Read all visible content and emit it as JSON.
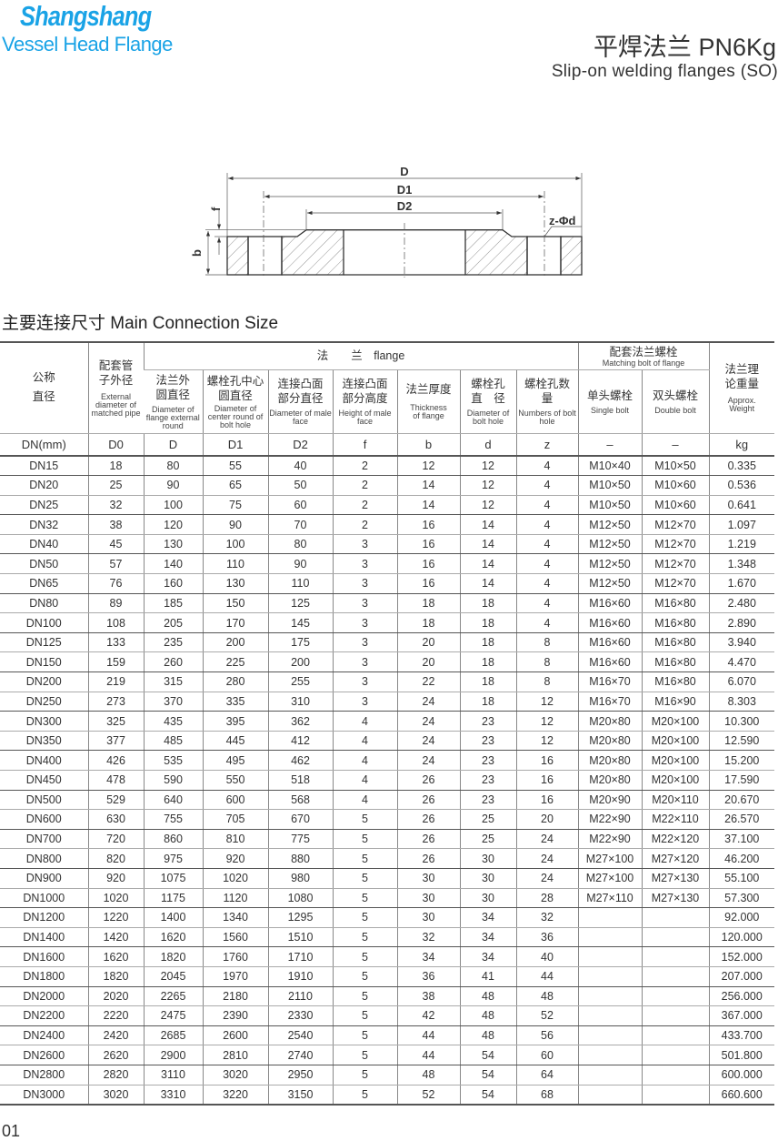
{
  "brand": {
    "name": "Shangshang",
    "tagline": "Vessel Head Flange",
    "color": "#1aa3e6"
  },
  "title": {
    "cn": "平焊法兰 PN6Kg",
    "en": "Slip-on welding flanges (SO)"
  },
  "drawing": {
    "labels": {
      "D": "D",
      "D1": "D1",
      "D2": "D2",
      "f": "f",
      "b": "b",
      "holes": "z-Φd"
    }
  },
  "section_title": "主要连接尺寸  Main Connection Size",
  "table": {
    "header": {
      "dn": "公称\n直径",
      "d0_cn": "配套管子外径",
      "d0_en": "External diameter of matched pipe",
      "flange_group": "法　　兰　flange",
      "bolt_group_cn": "配套法兰螺栓",
      "bolt_group_en": "Matching bolt of flange",
      "weight_cn": "法兰理论重量",
      "weight_en": "Approx. Weight",
      "D_cn": "法兰外圆直径",
      "D_en": "Diameter of flange external round",
      "D1_cn": "螺栓孔中心圆直径",
      "D1_en": "Diameter of center round of bolt hole",
      "D2_cn": "连接凸面部分直径",
      "D2_en": "Diameter of male face",
      "f_cn": "连接凸面部分高度",
      "f_en": "Height of male face",
      "b_cn": "法兰厚度",
      "b_en": "Thickness of flange",
      "d_cn": "螺栓孔直　径",
      "d_en": "Diameter of bolt hole",
      "z_cn": "螺栓孔数　量",
      "z_en": "Numbers of bolt hole",
      "single_cn": "单头螺栓",
      "single_en": "Single bolt",
      "double_cn": "双头螺栓",
      "double_en": "Double bolt"
    },
    "units": [
      "DN(mm)",
      "D0",
      "D",
      "D1",
      "D2",
      "f",
      "b",
      "d",
      "z",
      "–",
      "–",
      "kg"
    ],
    "rows": [
      [
        "DN15",
        "18",
        "80",
        "55",
        "40",
        "2",
        "12",
        "12",
        "4",
        "M10×40",
        "M10×50",
        "0.335"
      ],
      [
        "DN20",
        "25",
        "90",
        "65",
        "50",
        "2",
        "14",
        "12",
        "4",
        "M10×50",
        "M10×60",
        "0.536"
      ],
      [
        "DN25",
        "32",
        "100",
        "75",
        "60",
        "2",
        "14",
        "12",
        "4",
        "M10×50",
        "M10×60",
        "0.641"
      ],
      [
        "DN32",
        "38",
        "120",
        "90",
        "70",
        "2",
        "16",
        "14",
        "4",
        "M12×50",
        "M12×70",
        "1.097"
      ],
      [
        "DN40",
        "45",
        "130",
        "100",
        "80",
        "3",
        "16",
        "14",
        "4",
        "M12×50",
        "M12×70",
        "1.219"
      ],
      [
        "DN50",
        "57",
        "140",
        "110",
        "90",
        "3",
        "16",
        "14",
        "4",
        "M12×50",
        "M12×70",
        "1.348"
      ],
      [
        "DN65",
        "76",
        "160",
        "130",
        "110",
        "3",
        "16",
        "14",
        "4",
        "M12×50",
        "M12×70",
        "1.670"
      ],
      [
        "DN80",
        "89",
        "185",
        "150",
        "125",
        "3",
        "18",
        "18",
        "4",
        "M16×60",
        "M16×80",
        "2.480"
      ],
      [
        "DN100",
        "108",
        "205",
        "170",
        "145",
        "3",
        "18",
        "18",
        "4",
        "M16×60",
        "M16×80",
        "2.890"
      ],
      [
        "DN125",
        "133",
        "235",
        "200",
        "175",
        "3",
        "20",
        "18",
        "8",
        "M16×60",
        "M16×80",
        "3.940"
      ],
      [
        "DN150",
        "159",
        "260",
        "225",
        "200",
        "3",
        "20",
        "18",
        "8",
        "M16×60",
        "M16×80",
        "4.470"
      ],
      [
        "DN200",
        "219",
        "315",
        "280",
        "255",
        "3",
        "22",
        "18",
        "8",
        "M16×70",
        "M16×80",
        "6.070"
      ],
      [
        "DN250",
        "273",
        "370",
        "335",
        "310",
        "3",
        "24",
        "18",
        "12",
        "M16×70",
        "M16×90",
        "8.303"
      ],
      [
        "DN300",
        "325",
        "435",
        "395",
        "362",
        "4",
        "24",
        "23",
        "12",
        "M20×80",
        "M20×100",
        "10.300"
      ],
      [
        "DN350",
        "377",
        "485",
        "445",
        "412",
        "4",
        "24",
        "23",
        "12",
        "M20×80",
        "M20×100",
        "12.590"
      ],
      [
        "DN400",
        "426",
        "535",
        "495",
        "462",
        "4",
        "24",
        "23",
        "16",
        "M20×80",
        "M20×100",
        "15.200"
      ],
      [
        "DN450",
        "478",
        "590",
        "550",
        "518",
        "4",
        "26",
        "23",
        "16",
        "M20×80",
        "M20×100",
        "17.590"
      ],
      [
        "DN500",
        "529",
        "640",
        "600",
        "568",
        "4",
        "26",
        "23",
        "16",
        "M20×90",
        "M20×110",
        "20.670"
      ],
      [
        "DN600",
        "630",
        "755",
        "705",
        "670",
        "5",
        "26",
        "25",
        "20",
        "M22×90",
        "M22×110",
        "26.570"
      ],
      [
        "DN700",
        "720",
        "860",
        "810",
        "775",
        "5",
        "26",
        "25",
        "24",
        "M22×90",
        "M22×120",
        "37.100"
      ],
      [
        "DN800",
        "820",
        "975",
        "920",
        "880",
        "5",
        "26",
        "30",
        "24",
        "M27×100",
        "M27×120",
        "46.200"
      ],
      [
        "DN900",
        "920",
        "1075",
        "1020",
        "980",
        "5",
        "30",
        "30",
        "24",
        "M27×100",
        "M27×130",
        "55.100"
      ],
      [
        "DN1000",
        "1020",
        "1175",
        "1120",
        "1080",
        "5",
        "30",
        "30",
        "28",
        "M27×110",
        "M27×130",
        "57.300"
      ],
      [
        "DN1200",
        "1220",
        "1400",
        "1340",
        "1295",
        "5",
        "30",
        "34",
        "32",
        "",
        "",
        "92.000"
      ],
      [
        "DN1400",
        "1420",
        "1620",
        "1560",
        "1510",
        "5",
        "32",
        "34",
        "36",
        "",
        "",
        "120.000"
      ],
      [
        "DN1600",
        "1620",
        "1820",
        "1760",
        "1710",
        "5",
        "34",
        "34",
        "40",
        "",
        "",
        "152.000"
      ],
      [
        "DN1800",
        "1820",
        "2045",
        "1970",
        "1910",
        "5",
        "36",
        "41",
        "44",
        "",
        "",
        "207.000"
      ],
      [
        "DN2000",
        "2020",
        "2265",
        "2180",
        "2110",
        "5",
        "38",
        "48",
        "48",
        "",
        "",
        "256.000"
      ],
      [
        "DN2200",
        "2220",
        "2475",
        "2390",
        "2330",
        "5",
        "42",
        "48",
        "52",
        "",
        "",
        "367.000"
      ],
      [
        "DN2400",
        "2420",
        "2685",
        "2600",
        "2540",
        "5",
        "44",
        "48",
        "56",
        "",
        "",
        "433.700"
      ],
      [
        "DN2600",
        "2620",
        "2900",
        "2810",
        "2740",
        "5",
        "44",
        "54",
        "60",
        "",
        "",
        "501.800"
      ],
      [
        "DN2800",
        "2820",
        "3110",
        "3020",
        "2950",
        "5",
        "48",
        "54",
        "64",
        "",
        "",
        "600.000"
      ],
      [
        "DN3000",
        "3020",
        "3310",
        "3220",
        "3150",
        "5",
        "52",
        "54",
        "68",
        "",
        "",
        "660.600"
      ]
    ]
  },
  "page_number": "01"
}
